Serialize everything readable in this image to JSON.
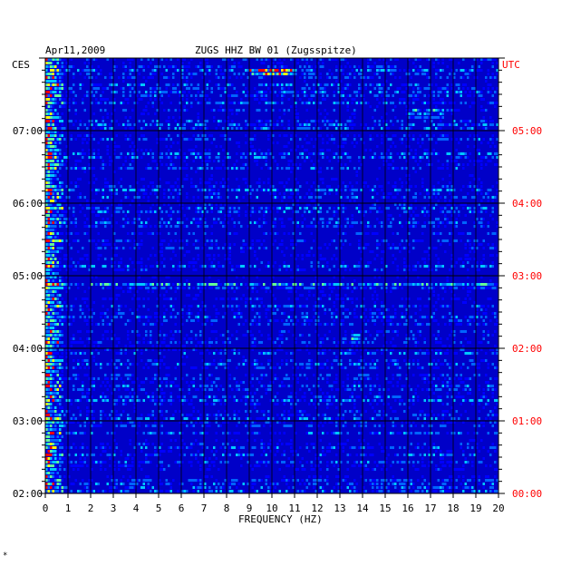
{
  "chart_data": {
    "type": "heatmap",
    "title": "ZUGS HHZ BW 01 (Zugsspitze)",
    "date": "Apr11,2009",
    "left_axis_label": "CES",
    "right_axis_label": "UTC",
    "xlabel": "FREQUENCY (HZ)",
    "x_ticks": [
      "0",
      "1",
      "2",
      "3",
      "4",
      "5",
      "6",
      "7",
      "8",
      "9",
      "10",
      "11",
      "12",
      "13",
      "14",
      "15",
      "16",
      "17",
      "18",
      "19",
      "20"
    ],
    "xlim": [
      0,
      20
    ],
    "left_time_ticks": [
      "07:00",
      "06:00",
      "05:00",
      "04:00",
      "03:00",
      "02:00"
    ],
    "right_time_ticks": [
      "05:00",
      "04:00",
      "03:00",
      "02:00",
      "01:00",
      "00:00"
    ],
    "time_range_utc": [
      "00:00",
      "05:50"
    ],
    "colors": {
      "background": "#0000c8",
      "low": "#0000ff",
      "mid": "#00c8ff",
      "high_yellow": "#ffff00",
      "high_red": "#ff0000",
      "grid": "#000000",
      "utc_labels": "#ff0000",
      "ces_labels": "#000000"
    },
    "grid": true,
    "notable_features": [
      {
        "freq_hz": [
          9,
          11
        ],
        "time_utc": "05:40",
        "level": "high"
      },
      {
        "freq_hz": [
          0,
          20
        ],
        "time_utc": "02:43",
        "level": "elevated"
      },
      {
        "freq_hz": [
          13.5,
          13.8
        ],
        "time_utc": "02:00",
        "level": "high"
      },
      {
        "freq_hz": [
          16,
          17.5
        ],
        "time_utc": "05:05",
        "level": "elevated"
      }
    ]
  },
  "footer_mark": "*"
}
